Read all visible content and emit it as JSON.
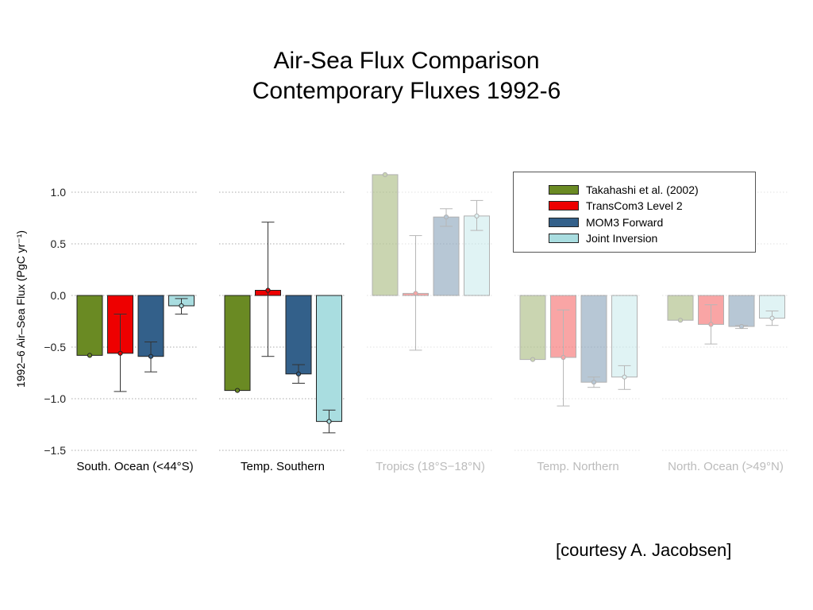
{
  "title": {
    "line1": "Air-Sea Flux Comparison",
    "line2": "Contemporary Fluxes 1992-6"
  },
  "courtesy": "[courtesy A. Jacobsen]",
  "chart_data": {
    "type": "bar",
    "ylabel": "1992–6 Air–Sea Flux (PgC yr⁻¹)",
    "ylim": [
      -1.5,
      1.15
    ],
    "yticks": [
      1.0,
      0.5,
      0.0,
      -0.5,
      -1.0,
      -1.5
    ],
    "ytick_labels": [
      "1.0",
      "0.5",
      "0.0",
      "−0.5",
      "−1.0",
      "−1.5"
    ],
    "grid": "dotted horizontal",
    "legend_position": "top-right",
    "categories": [
      "South. Ocean (<44°S)",
      "Temp. Southern",
      "Tropics (18°S−18°N)",
      "Temp. Northern",
      "North. Ocean (>49°N)"
    ],
    "highlighted_categories": [
      0,
      1
    ],
    "series": [
      {
        "name": "Takahashi et al. (2002)",
        "color": "#6a8a23",
        "values": [
          -0.58,
          -0.92,
          1.17,
          -0.62,
          -0.24
        ],
        "err_low": [
          -0.58,
          -0.92,
          1.17,
          -0.62,
          -0.24
        ],
        "err_high": [
          -0.58,
          -0.92,
          1.17,
          -0.62,
          -0.24
        ]
      },
      {
        "name": "TransCom3 Level 2",
        "color": "#ee0000",
        "values": [
          -0.56,
          0.05,
          0.02,
          -0.6,
          -0.28
        ],
        "err_low": [
          -0.93,
          -0.59,
          -0.53,
          -1.07,
          -0.47
        ],
        "err_high": [
          -0.18,
          0.71,
          0.58,
          -0.14,
          -0.09
        ]
      },
      {
        "name": "MOM3 Forward",
        "color": "#33608a",
        "values": [
          -0.59,
          -0.76,
          0.76,
          -0.84,
          -0.3
        ],
        "err_low": [
          -0.74,
          -0.85,
          0.67,
          -0.89,
          -0.32
        ],
        "err_high": [
          -0.45,
          -0.67,
          0.84,
          -0.79,
          -0.29
        ]
      },
      {
        "name": "Joint Inversion",
        "color": "#a9dde0",
        "values": [
          -0.1,
          -1.22,
          0.77,
          -0.79,
          -0.22
        ],
        "err_low": [
          -0.18,
          -1.33,
          0.63,
          -0.91,
          -0.29
        ],
        "err_high": [
          -0.03,
          -1.11,
          0.92,
          -0.68,
          -0.15
        ]
      }
    ]
  }
}
